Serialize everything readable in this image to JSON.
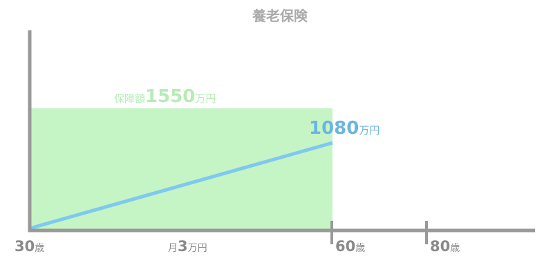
{
  "title": "養老保険",
  "colors": {
    "axis": "#999999",
    "title": "#aaaaaa",
    "coverage_fill": "#c5f5c5",
    "coverage_text": "#b6ecb6",
    "growth_line": "#7fc8ef",
    "growth_text": "#6ab6e0",
    "axis_label": "#8a8a8a"
  },
  "coverage": {
    "prefix": "保障額",
    "amount": "1550",
    "unit": "万円"
  },
  "accumulated": {
    "amount": "1080",
    "unit": "万円"
  },
  "premium": {
    "prefix": "月",
    "amount": "3",
    "unit": "万円"
  },
  "ages": [
    {
      "num": "30",
      "unit": "歳"
    },
    {
      "num": "60",
      "unit": "歳"
    },
    {
      "num": "80",
      "unit": "歳"
    }
  ]
}
